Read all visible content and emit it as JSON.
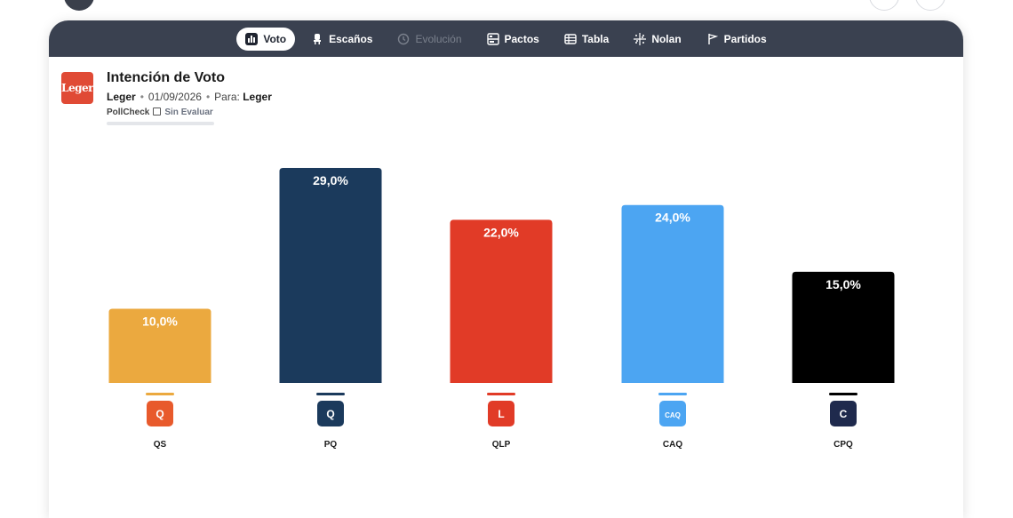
{
  "tabs": [
    {
      "label": "Voto",
      "icon": "bar-chart-icon",
      "active": true,
      "disabled": false
    },
    {
      "label": "Escaños",
      "icon": "seat-icon",
      "active": false,
      "disabled": false
    },
    {
      "label": "Evolución",
      "icon": "history-icon",
      "active": false,
      "disabled": true
    },
    {
      "label": "Pactos",
      "icon": "pacts-icon",
      "active": false,
      "disabled": false
    },
    {
      "label": "Tabla",
      "icon": "table-icon",
      "active": false,
      "disabled": false
    },
    {
      "label": "Nolan",
      "icon": "grid-dots-icon",
      "active": false,
      "disabled": false
    },
    {
      "label": "Partidos",
      "icon": "flag-icon",
      "active": false,
      "disabled": false
    }
  ],
  "header": {
    "logo_text": "Leger",
    "title": "Intención de Voto",
    "pollster": "Leger",
    "date": "01/09/2026",
    "para_label": "Para:",
    "para_value": "Leger",
    "pollcheck_label": "PollCheck",
    "pollcheck_status": "Sin Evaluar"
  },
  "chart_data": {
    "type": "bar",
    "categories": [
      "QS",
      "PQ",
      "QLP",
      "CAQ",
      "CPQ"
    ],
    "values": [
      10.0,
      29.0,
      22.0,
      24.0,
      15.0
    ],
    "value_labels": [
      "10,0%",
      "29,0%",
      "22,0%",
      "24,0%",
      "15,0%"
    ],
    "colors": [
      "#EBA93F",
      "#1B3A5C",
      "#E13B27",
      "#4CA5F2",
      "#000000"
    ],
    "party_icons": [
      "QS",
      "PQ",
      "QLP",
      "CAQ",
      "CPQ"
    ],
    "ylim": [
      0,
      29
    ]
  }
}
